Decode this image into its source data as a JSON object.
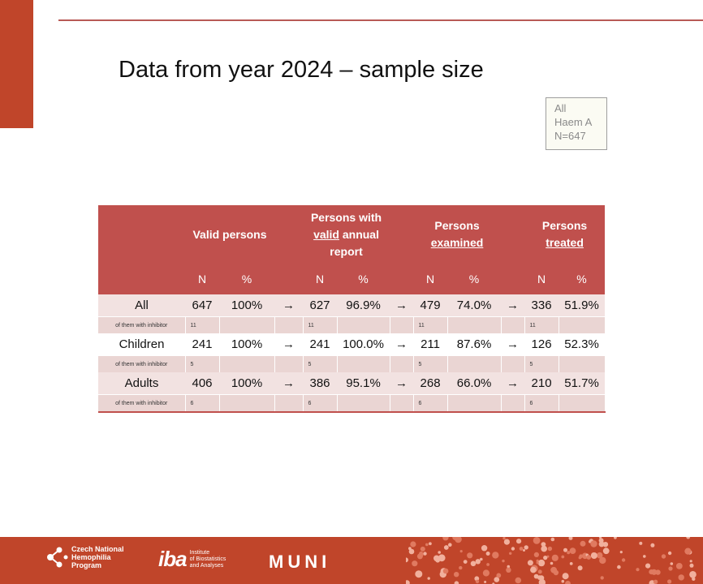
{
  "title": "Data from year 2024 – sample size",
  "note": [
    "All",
    "Haem A",
    "N=647"
  ],
  "table": {
    "group_headers": [
      {
        "pre": "Valid persons",
        "u": "",
        "post": ""
      },
      {
        "pre": "Persons with ",
        "u": "valid",
        "post": " annual report"
      },
      {
        "pre": "Persons ",
        "u": "examined",
        "post": ""
      },
      {
        "pre": "Persons ",
        "u": "treated",
        "post": ""
      }
    ],
    "col_n": "N",
    "col_pct": "%",
    "arrow": "→",
    "rows": [
      {
        "label": "All",
        "values": [
          [
            "647",
            "100%"
          ],
          [
            "627",
            "96.9%"
          ],
          [
            "479",
            "74.0%"
          ],
          [
            "336",
            "51.9%"
          ]
        ],
        "sub_label": "of them with inhibitor",
        "sub_values": [
          "11",
          "11",
          "11",
          "11"
        ]
      },
      {
        "label": "Children",
        "values": [
          [
            "241",
            "100%"
          ],
          [
            "241",
            "100.0%"
          ],
          [
            "211",
            "87.6%"
          ],
          [
            "126",
            "52.3%"
          ]
        ],
        "sub_label": "of them with inhibitor",
        "sub_values": [
          "5",
          "5",
          "5",
          "5"
        ]
      },
      {
        "label": "Adults",
        "values": [
          [
            "406",
            "100%"
          ],
          [
            "386",
            "95.1%"
          ],
          [
            "268",
            "66.0%"
          ],
          [
            "210",
            "51.7%"
          ]
        ],
        "sub_label": "of them with inhibitor",
        "sub_values": [
          "6",
          "6",
          "6",
          "6"
        ]
      }
    ]
  },
  "footer": {
    "cnhp_lines": [
      "Czech National",
      "Hemophilia",
      "Program"
    ],
    "iba_mark": "iba",
    "iba_lines": [
      "Institute",
      "of Biostatistics",
      "and Analyses"
    ],
    "muni": "MUNI"
  }
}
